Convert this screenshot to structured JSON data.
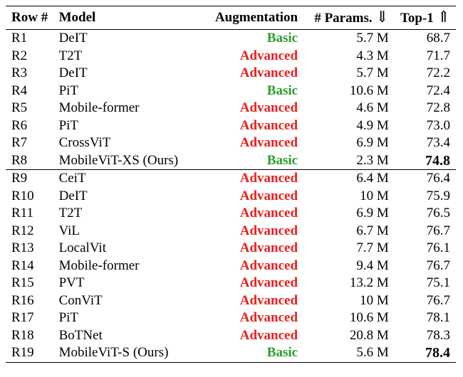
{
  "header": {
    "row": "Row #",
    "model": "Model",
    "augmentation": "Augmentation",
    "params": "# Params.",
    "params_arrow": "⇓",
    "top1": "Top-1",
    "top1_arrow": "⇑"
  },
  "colors": {
    "basic": "#2a9d2a",
    "advanced": "#e8201e"
  },
  "group1": [
    {
      "row": "R1",
      "model": "DeIT",
      "aug": "Basic",
      "params": "5.7 M",
      "top1": "68.7"
    },
    {
      "row": "R2",
      "model": "T2T",
      "aug": "Advanced",
      "params": "4.3 M",
      "top1": "71.7"
    },
    {
      "row": "R3",
      "model": "DeIT",
      "aug": "Advanced",
      "params": "5.7 M",
      "top1": "72.2"
    },
    {
      "row": "R4",
      "model": "PiT",
      "aug": "Basic",
      "params": "10.6 M",
      "top1": "72.4"
    },
    {
      "row": "R5",
      "model": "Mobile-former",
      "aug": "Advanced",
      "params": "4.6 M",
      "top1": "72.8"
    },
    {
      "row": "R6",
      "model": "PiT",
      "aug": "Advanced",
      "params": "4.9 M",
      "top1": "73.0"
    },
    {
      "row": "R7",
      "model": "CrossViT",
      "aug": "Advanced",
      "params": "6.9 M",
      "top1": "73.4"
    },
    {
      "row": "R8",
      "model": "MobileViT-XS (Ours)",
      "aug": "Basic",
      "params": "2.3 M",
      "top1": "74.8",
      "best": true
    }
  ],
  "group2": [
    {
      "row": "R9",
      "model": "CeiT",
      "aug": "Advanced",
      "params": "6.4 M",
      "top1": "76.4"
    },
    {
      "row": "R10",
      "model": "DeIT",
      "aug": "Advanced",
      "params": "10 M",
      "top1": "75.9"
    },
    {
      "row": "R11",
      "model": "T2T",
      "aug": "Advanced",
      "params": "6.9 M",
      "top1": "76.5"
    },
    {
      "row": "R12",
      "model": "ViL",
      "aug": "Advanced",
      "params": "6.7 M",
      "top1": "76.7"
    },
    {
      "row": "R13",
      "model": "LocalVit",
      "aug": "Advanced",
      "params": "7.7 M",
      "top1": "76.1"
    },
    {
      "row": "R14",
      "model": "Mobile-former",
      "aug": "Advanced",
      "params": "9.4 M",
      "top1": "76.7"
    },
    {
      "row": "R15",
      "model": "PVT",
      "aug": "Advanced",
      "params": "13.2 M",
      "top1": "75.1"
    },
    {
      "row": "R16",
      "model": "ConViT",
      "aug": "Advanced",
      "params": "10 M",
      "top1": "76.7"
    },
    {
      "row": "R17",
      "model": "PiT",
      "aug": "Advanced",
      "params": "10.6 M",
      "top1": "78.1"
    },
    {
      "row": "R18",
      "model": "BoTNet",
      "aug": "Advanced",
      "params": "20.8 M",
      "top1": "78.3"
    },
    {
      "row": "R19",
      "model": "MobileViT-S (Ours)",
      "aug": "Basic",
      "params": "5.6 M",
      "top1": "78.4",
      "best": true
    }
  ]
}
